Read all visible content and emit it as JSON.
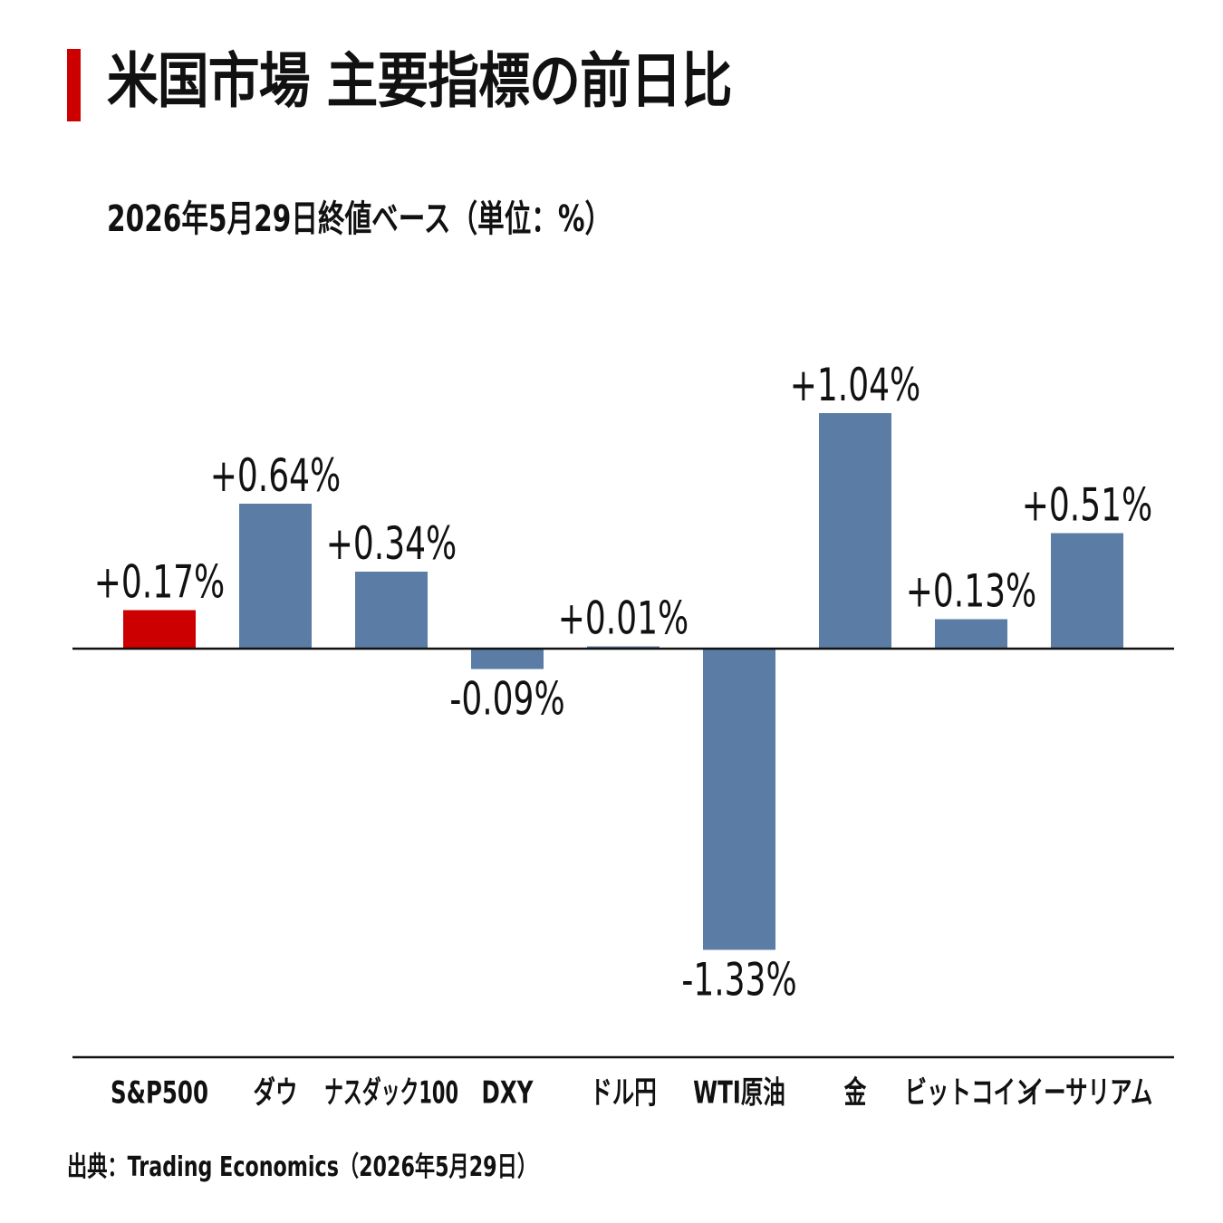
{
  "title": "米国市場 主要指標の前日比",
  "subtitle": "2026年5月29日終値ベース（単位：%）",
  "source": "出典：Trading Economics（2026年5月29日）",
  "colors": {
    "accent": "#cc0000",
    "highlight_bar": "#cc0000",
    "bar": "#5a7ca5",
    "axis": "#111111",
    "text": "#111111"
  },
  "chart_data": {
    "type": "bar",
    "categories": [
      "S&P500",
      "ダウ",
      "ナスダック100",
      "DXY",
      "ドル円",
      "WTI原油",
      "金",
      "ビットコイン",
      "イーサリアム"
    ],
    "values": [
      0.17,
      0.64,
      0.34,
      -0.09,
      0.01,
      -1.33,
      1.04,
      0.13,
      0.51
    ],
    "data_labels": [
      "+0.17%",
      "+0.64%",
      "+0.34%",
      "-0.09%",
      "+0.01%",
      "-1.33%",
      "+1.04%",
      "+0.13%",
      "+0.51%"
    ],
    "highlight_category": "S&P500",
    "title": "米国市場 主要指標の前日比",
    "xlabel": "",
    "ylabel": "",
    "unit": "%",
    "ylim": [
      -1.33,
      1.04
    ],
    "grid": false,
    "legend": "none"
  }
}
